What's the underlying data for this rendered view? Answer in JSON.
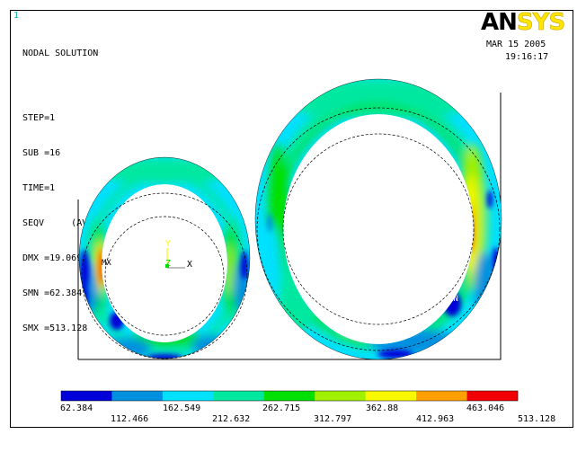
{
  "window_number": "1",
  "header_lines": [
    "NODAL SOLUTION",
    "",
    "STEP=1",
    "SUB =16",
    "TIME=1",
    "SEQV     (AVG)",
    "DMX =19.069",
    "SMN =62.384",
    "SMX =513.128"
  ],
  "date": "MAR 15 2005",
  "time": "19:16:17",
  "logo": {
    "an": "AN",
    "sys": "SYS"
  },
  "axis_labels": {
    "y": "Y",
    "z": "Z",
    "x": "X"
  },
  "markers": {
    "mx": "MX",
    "mn": "MN"
  },
  "legend": {
    "colors": [
      "#0000d8",
      "#0090e0",
      "#00e0ff",
      "#00e8a0",
      "#00e000",
      "#a0f000",
      "#f8f800",
      "#ffa000",
      "#f00000"
    ],
    "labels_top": [
      "62.384",
      "162.549",
      "262.715",
      "362.88",
      "463.046"
    ],
    "labels_bottom": [
      "112.466",
      "212.632",
      "312.797",
      "412.963",
      "513.128"
    ]
  }
}
